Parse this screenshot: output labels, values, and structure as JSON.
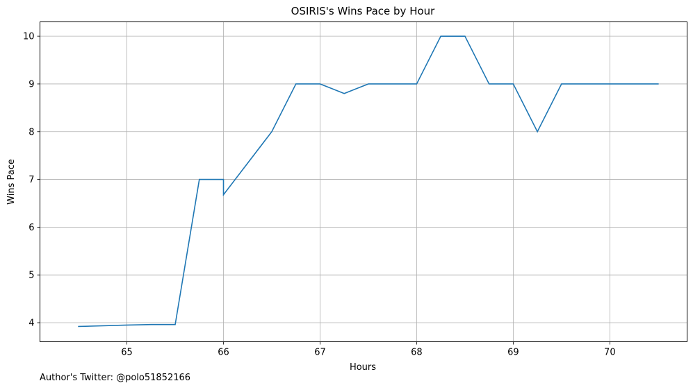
{
  "chart_data": {
    "type": "line",
    "title": "OSIRIS's Wins Pace by Hour",
    "xlabel": "Hours",
    "ylabel": "Wins Pace",
    "xlim": [
      64.1,
      70.8
    ],
    "ylim": [
      3.6,
      10.3
    ],
    "xticks": [
      65,
      66,
      67,
      68,
      69,
      70
    ],
    "yticks": [
      4,
      5,
      6,
      7,
      8,
      9,
      10
    ],
    "grid": true,
    "series": [
      {
        "color": "#1f77b4",
        "x": [
          64.5,
          65.0,
          65.25,
          65.5,
          65.75,
          66.0,
          66.0,
          66.5,
          66.75,
          67.0,
          67.25,
          67.5,
          67.75,
          68.0,
          68.25,
          68.5,
          68.75,
          69.0,
          69.25,
          69.5,
          69.75,
          70.0,
          70.25,
          70.5
        ],
        "y": [
          3.92,
          3.95,
          3.96,
          3.96,
          7.0,
          7.0,
          6.68,
          8.0,
          9.0,
          9.0,
          8.8,
          9.0,
          9.0,
          9.0,
          10.0,
          10.0,
          9.0,
          9.0,
          8.0,
          9.0,
          9.0,
          9.0,
          9.0,
          9.0
        ]
      }
    ]
  },
  "footer": {
    "credit": "Author's Twitter: @polo51852166"
  }
}
